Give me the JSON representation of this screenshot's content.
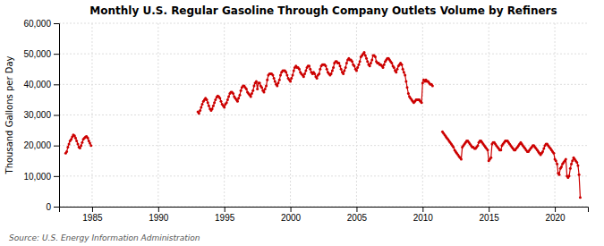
{
  "chart_data": {
    "type": "line",
    "title": "Monthly U.S. Regular Gasoline Through Company Outlets Volume by Refiners",
    "y_label": "Thousand Gallons per Day",
    "annotations": [
      "Source: U.S. Energy Information Administration"
    ],
    "grid": true,
    "xlim": [
      1982.5,
      2022.5
    ],
    "xticks": [
      1985,
      1990,
      1995,
      2000,
      2005,
      2010,
      2015,
      2020
    ],
    "ylim": [
      0,
      60000
    ],
    "yticks": [
      0,
      {
        "value": 10000,
        "label": "10,000"
      },
      {
        "value": 20000,
        "label": "20,000"
      },
      {
        "value": 30000,
        "label": "30,000"
      },
      {
        "value": 40000,
        "label": "40,000"
      },
      {
        "value": 50000,
        "label": "50,000"
      },
      {
        "value": 60000,
        "label": "60,000"
      }
    ],
    "x": [
      1983.0,
      1983.08,
      1983.17,
      1983.25,
      1983.33,
      1983.42,
      1983.5,
      1983.58,
      1983.67,
      1983.75,
      1983.83,
      1983.92,
      1984.0,
      1984.08,
      1984.17,
      1984.25,
      1984.33,
      1984.42,
      1984.5,
      1984.58,
      1984.67,
      1984.75,
      1984.83,
      1984.92,
      null,
      1993.0,
      1993.08,
      1993.17,
      1993.25,
      1993.33,
      1993.42,
      1993.5,
      1993.58,
      1993.67,
      1993.75,
      1993.83,
      1993.92,
      1994.0,
      1994.08,
      1994.17,
      1994.25,
      1994.33,
      1994.42,
      1994.5,
      1994.58,
      1994.67,
      1994.75,
      1994.83,
      1994.92,
      1995.0,
      1995.08,
      1995.17,
      1995.25,
      1995.33,
      1995.42,
      1995.5,
      1995.58,
      1995.67,
      1995.75,
      1995.83,
      1995.92,
      1996.0,
      1996.08,
      1996.17,
      1996.25,
      1996.33,
      1996.42,
      1996.5,
      1996.58,
      1996.67,
      1996.75,
      1996.83,
      1996.92,
      1997.0,
      1997.08,
      1997.17,
      1997.25,
      1997.33,
      1997.42,
      1997.5,
      1997.58,
      1997.67,
      1997.75,
      1997.83,
      1997.92,
      1998.0,
      1998.08,
      1998.17,
      1998.25,
      1998.33,
      1998.42,
      1998.5,
      1998.58,
      1998.67,
      1998.75,
      1998.83,
      1998.92,
      1999.0,
      1999.08,
      1999.17,
      1999.25,
      1999.33,
      1999.42,
      1999.5,
      1999.58,
      1999.67,
      1999.75,
      1999.83,
      1999.92,
      2000.0,
      2000.08,
      2000.17,
      2000.25,
      2000.33,
      2000.42,
      2000.5,
      2000.58,
      2000.67,
      2000.75,
      2000.83,
      2000.92,
      2001.0,
      2001.08,
      2001.17,
      2001.25,
      2001.33,
      2001.42,
      2001.5,
      2001.58,
      2001.67,
      2001.75,
      2001.83,
      2001.92,
      2002.0,
      2002.08,
      2002.17,
      2002.25,
      2002.33,
      2002.42,
      2002.5,
      2002.58,
      2002.67,
      2002.75,
      2002.83,
      2002.92,
      2003.0,
      2003.08,
      2003.17,
      2003.25,
      2003.33,
      2003.42,
      2003.5,
      2003.58,
      2003.67,
      2003.75,
      2003.83,
      2003.92,
      2004.0,
      2004.08,
      2004.17,
      2004.25,
      2004.33,
      2004.42,
      2004.5,
      2004.58,
      2004.67,
      2004.75,
      2004.83,
      2004.92,
      2005.0,
      2005.08,
      2005.17,
      2005.25,
      2005.33,
      2005.42,
      2005.5,
      2005.58,
      2005.67,
      2005.75,
      2005.83,
      2005.92,
      2006.0,
      2006.08,
      2006.17,
      2006.25,
      2006.33,
      2006.42,
      2006.5,
      2006.58,
      2006.67,
      2006.75,
      2006.83,
      2006.92,
      2007.0,
      2007.08,
      2007.17,
      2007.25,
      2007.33,
      2007.42,
      2007.5,
      2007.58,
      2007.67,
      2007.75,
      2007.83,
      2007.92,
      2008.0,
      2008.08,
      2008.17,
      2008.25,
      2008.33,
      2008.42,
      2008.5,
      2008.58,
      2008.67,
      2008.75,
      2008.83,
      2008.92,
      2009.0,
      2009.08,
      2009.17,
      2009.25,
      2009.33,
      2009.42,
      2009.5,
      2009.58,
      2009.67,
      2009.75,
      2009.83,
      2009.92,
      2010.0,
      2010.08,
      2010.17,
      2010.25,
      2010.33,
      2010.42,
      2010.5,
      2010.58,
      2010.67,
      2010.75,
      null,
      2011.5,
      2011.58,
      2011.67,
      2011.75,
      2011.83,
      2011.92,
      2012.0,
      2012.08,
      2012.17,
      2012.25,
      2012.33,
      2012.42,
      2012.5,
      2012.58,
      2012.67,
      2012.75,
      2012.83,
      2012.92,
      2013.0,
      2013.08,
      2013.17,
      2013.25,
      2013.33,
      2013.42,
      2013.5,
      2013.58,
      2013.67,
      2013.75,
      2013.83,
      2013.92,
      2014.0,
      2014.08,
      2014.17,
      2014.25,
      2014.33,
      2014.42,
      2014.5,
      2014.58,
      2014.67,
      2014.75,
      2014.83,
      2014.92,
      2015.0,
      2015.08,
      2015.17,
      2015.25,
      2015.33,
      2015.42,
      2015.5,
      2015.58,
      2015.67,
      2015.75,
      2015.83,
      2015.92,
      2016.0,
      2016.08,
      2016.17,
      2016.25,
      2016.33,
      2016.42,
      2016.5,
      2016.58,
      2016.67,
      2016.75,
      2016.83,
      2016.92,
      2017.0,
      2017.08,
      2017.17,
      2017.25,
      2017.33,
      2017.42,
      2017.5,
      2017.58,
      2017.67,
      2017.75,
      2017.83,
      2017.92,
      2018.0,
      2018.08,
      2018.17,
      2018.25,
      2018.33,
      2018.42,
      2018.5,
      2018.58,
      2018.67,
      2018.75,
      2018.83,
      2018.92,
      2019.0,
      2019.08,
      2019.17,
      2019.25,
      2019.33,
      2019.42,
      2019.5,
      2019.58,
      2019.67,
      2019.75,
      2019.83,
      2019.92,
      2020.0,
      2020.08,
      2020.17,
      2020.25,
      2020.33,
      2020.42,
      2020.5,
      2020.58,
      2020.67,
      2020.75,
      2020.83,
      2020.92,
      2021.0,
      2021.08,
      2021.17,
      2021.25,
      2021.33,
      2021.42,
      2021.5,
      2021.58,
      2021.67,
      2021.75,
      2021.83,
      2021.92
    ],
    "series": [
      {
        "color": "#cc0000",
        "marker": "circle",
        "values": [
          17500,
          18000,
          19500,
          20500,
          21500,
          22000,
          22800,
          23500,
          23200,
          22500,
          21500,
          20500,
          19500,
          19200,
          20000,
          21000,
          22000,
          22500,
          22800,
          23000,
          22500,
          21500,
          20800,
          20000,
          null,
          31000,
          30500,
          31500,
          32500,
          33500,
          34500,
          35000,
          35500,
          35000,
          34000,
          33000,
          32000,
          31500,
          32000,
          33000,
          34000,
          35000,
          35800,
          36200,
          36000,
          35500,
          34500,
          33500,
          33000,
          32500,
          33500,
          34000,
          35000,
          36000,
          37000,
          37500,
          37500,
          37000,
          36000,
          35500,
          35000,
          34500,
          35500,
          36500,
          38000,
          39000,
          39500,
          39500,
          39000,
          38500,
          37500,
          37000,
          36500,
          36000,
          37000,
          38000,
          39500,
          40500,
          41000,
          38500,
          40500,
          40500,
          39500,
          39000,
          38000,
          37500,
          38500,
          39500,
          41500,
          43000,
          43500,
          43500,
          43500,
          43000,
          42000,
          41000,
          40000,
          39500,
          40500,
          41500,
          43000,
          44000,
          44500,
          44500,
          44500,
          44000,
          43000,
          42000,
          41500,
          41000,
          42000,
          43000,
          44500,
          45500,
          46000,
          45500,
          45500,
          45000,
          44000,
          43500,
          43000,
          42500,
          43500,
          44500,
          45500,
          46000,
          46000,
          45000,
          44000,
          43500,
          44000,
          43500,
          42500,
          42000,
          43000,
          43500,
          45000,
          46000,
          46500,
          46500,
          46500,
          46000,
          45000,
          44000,
          43500,
          43000,
          43500,
          44500,
          45500,
          47000,
          47500,
          47500,
          47000,
          47000,
          46000,
          45000,
          44000,
          43500,
          44500,
          45500,
          47000,
          48000,
          48500,
          48000,
          48000,
          47500,
          46500,
          46000,
          45000,
          44500,
          45500,
          46500,
          47500,
          49000,
          49500,
          50000,
          50500,
          49500,
          48500,
          47500,
          46500,
          46000,
          47000,
          48000,
          49500,
          49500,
          49000,
          47500,
          47000,
          47000,
          46500,
          46500,
          46000,
          45500,
          46500,
          47500,
          48000,
          48500,
          48500,
          48000,
          47500,
          47000,
          46000,
          45500,
          44500,
          44000,
          45000,
          46000,
          46500,
          47000,
          46500,
          45000,
          44000,
          43000,
          41000,
          39000,
          37000,
          36000,
          35500,
          35000,
          34500,
          34000,
          34500,
          35000,
          35000,
          35000,
          35000,
          34500,
          34000,
          40500,
          41500,
          41000,
          41500,
          41000,
          41000,
          40500,
          40000,
          40000,
          39500,
          null,
          24500,
          24000,
          23500,
          23000,
          22500,
          22000,
          21500,
          21000,
          20500,
          20000,
          19500,
          18500,
          18000,
          17500,
          17000,
          16500,
          16000,
          15500,
          19500,
          20000,
          20500,
          21000,
          21500,
          21500,
          21000,
          20500,
          20000,
          19500,
          19500,
          19000,
          19000,
          19500,
          20000,
          21000,
          21500,
          21500,
          21000,
          20500,
          20000,
          19500,
          19000,
          18500,
          15000,
          15500,
          16000,
          20500,
          21000,
          21000,
          20500,
          20000,
          19500,
          19000,
          18500,
          18500,
          20000,
          20500,
          21000,
          21500,
          21500,
          21500,
          21000,
          20500,
          20000,
          19500,
          19000,
          18500,
          18500,
          19000,
          19500,
          20000,
          20500,
          21000,
          20500,
          20000,
          19500,
          19000,
          18500,
          18000,
          18000,
          18500,
          19000,
          19500,
          20000,
          20000,
          19500,
          19000,
          18500,
          18000,
          17500,
          17000,
          17500,
          18000,
          19000,
          20000,
          20500,
          20500,
          20000,
          19500,
          19000,
          18500,
          18000,
          17500,
          15500,
          15000,
          14000,
          11000,
          10500,
          12500,
          13000,
          14000,
          14500,
          15000,
          15500,
          10000,
          9500,
          10000,
          12500,
          14000,
          15000,
          16000,
          15500,
          15000,
          14500,
          13500,
          10500,
          3000
        ]
      }
    ]
  }
}
